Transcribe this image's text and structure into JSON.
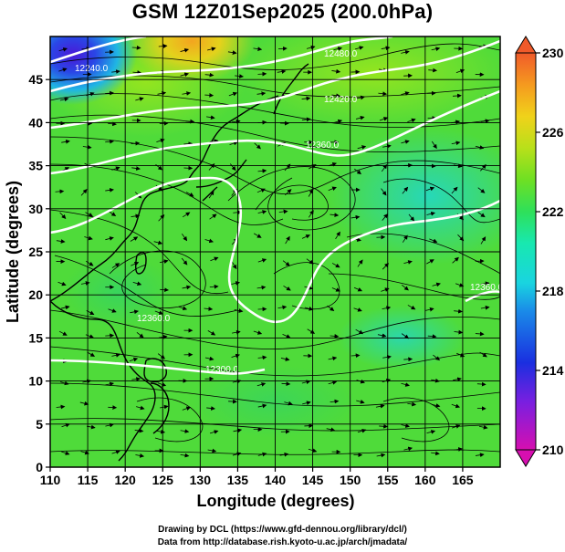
{
  "title": "GSM 12Z01Sep2025 (200.0hPa)",
  "axes": {
    "xlabel": "Longitude (degrees)",
    "ylabel": "Latitude  (degrees)",
    "xticks": [
      "110",
      "115",
      "120",
      "125",
      "130",
      "135",
      "140",
      "145",
      "150",
      "155",
      "160",
      "165"
    ],
    "yticks": [
      "0",
      "5",
      "10",
      "15",
      "20",
      "25",
      "30",
      "35",
      "40",
      "45"
    ],
    "xrange": [
      110,
      170
    ],
    "yrange": [
      0,
      50
    ]
  },
  "colorbar": {
    "ticks": [
      "210",
      "214",
      "218",
      "222",
      "226",
      "230"
    ],
    "range": [
      210,
      230
    ],
    "colors": [
      "#d60fb0",
      "#7a1fe0",
      "#1a2fe0",
      "#1a8be8",
      "#19d4e0",
      "#18e8b0",
      "#2ee05a",
      "#6ee023",
      "#b8e01a",
      "#f0d21a",
      "#f59a1f",
      "#f05a2a"
    ]
  },
  "contours": [
    {
      "label": "12240.0"
    },
    {
      "label": "12480.0"
    },
    {
      "label": "12420.0"
    },
    {
      "label": "12360.0"
    },
    {
      "label": "12300.0"
    },
    {
      "label": "12360.0"
    },
    {
      "label": "12360.0"
    }
  ],
  "credits": {
    "line1": "Drawing by DCL (https://www.gfd-dennou.org/library/dcl/)",
    "line2": "Data from http://database.rish.kyoto-u.ac.jp/arch/jmadata/"
  },
  "chart_data": {
    "type": "heatmap",
    "title": "GSM 12Z01Sep2025 (200.0hPa)",
    "xlabel": "Longitude (degrees)",
    "ylabel": "Latitude  (degrees)",
    "xlim": [
      110,
      170
    ],
    "ylim": [
      0,
      50
    ],
    "colorbar_range": [
      210,
      230
    ],
    "colorbar_ticks": [
      210,
      214,
      218,
      222,
      226,
      230
    ],
    "legend_placement": "right",
    "grid": true
  }
}
